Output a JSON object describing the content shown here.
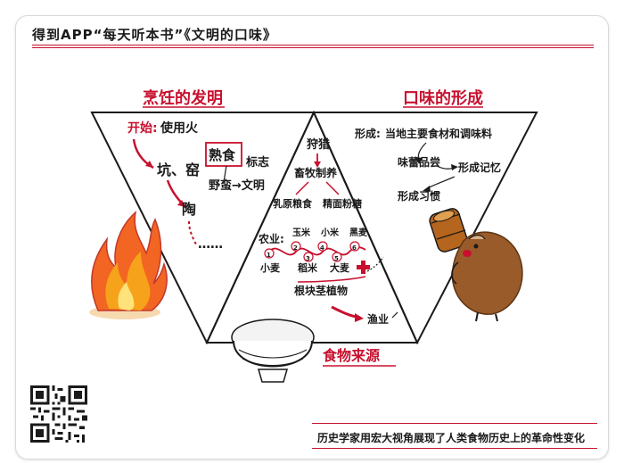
{
  "header": {
    "text": "得到APP“每天听本书”《文明的口味》"
  },
  "footer": {
    "text": "历史学家用宏大视角展现了人类食物历史上的革命性变化"
  },
  "left": {
    "title": "烹饪的发明",
    "start_label": "开始:",
    "start_text": "使用火",
    "pit": "坑、窑",
    "pot": "陶",
    "ellipsis": "……",
    "cooked": "熟食",
    "mark": "标志",
    "wild_to_civil": "野蛮→文明"
  },
  "middle": {
    "title": "食物来源",
    "hunting": "狩猎",
    "herding": "畜牧制养",
    "dairy": "乳原粮食",
    "refined": "精面粉糖",
    "agri_label": "农业:",
    "crops_top": [
      "玉米",
      "小米",
      "黑麦"
    ],
    "crops_bottom": [
      "小麦",
      "稻米",
      "大麦"
    ],
    "crop_numbers": [
      "1",
      "2",
      "3",
      "4",
      "5",
      "6"
    ],
    "tubers": "根块茎植物",
    "fishery": "渔业"
  },
  "right": {
    "title": "口味的形成",
    "formation": "形成:",
    "formation_text": "当地主要食材和调味料",
    "taste": "味蕾品尝",
    "memory": "形成记忆",
    "habit": "形成习惯"
  },
  "colors": {
    "accent": "#c8102e",
    "ink": "#1a1a1a",
    "flame": "#f26522"
  }
}
